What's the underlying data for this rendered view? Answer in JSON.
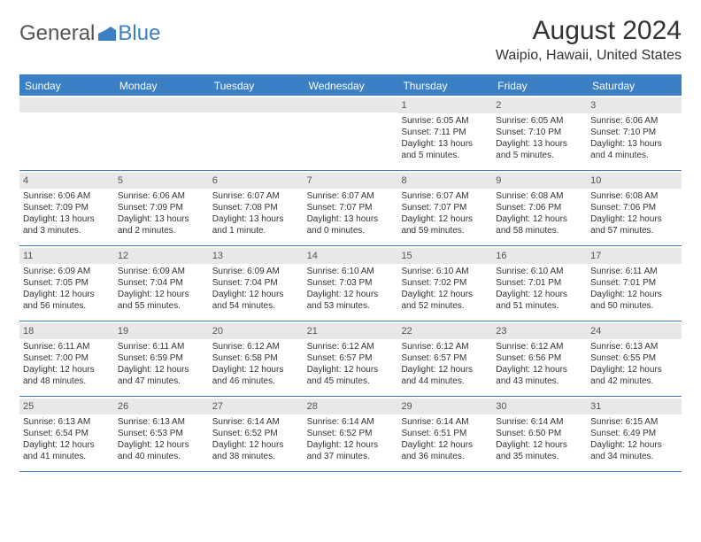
{
  "logo": {
    "part1": "General",
    "part2": "Blue"
  },
  "title": "August 2024",
  "location": "Waipio, Hawaii, United States",
  "colors": {
    "header_bg": "#3b7fc4",
    "header_text": "#ffffff",
    "daynum_bg": "#e8e8e8",
    "border": "#3b7fc4",
    "body_text": "#333333",
    "logo_gray": "#555555",
    "logo_blue": "#3b7fc4"
  },
  "weekdays": [
    "Sunday",
    "Monday",
    "Tuesday",
    "Wednesday",
    "Thursday",
    "Friday",
    "Saturday"
  ],
  "weeks": [
    [
      {
        "n": "",
        "sr": "",
        "ss": "",
        "dl": ""
      },
      {
        "n": "",
        "sr": "",
        "ss": "",
        "dl": ""
      },
      {
        "n": "",
        "sr": "",
        "ss": "",
        "dl": ""
      },
      {
        "n": "",
        "sr": "",
        "ss": "",
        "dl": ""
      },
      {
        "n": "1",
        "sr": "Sunrise: 6:05 AM",
        "ss": "Sunset: 7:11 PM",
        "dl": "Daylight: 13 hours and 5 minutes."
      },
      {
        "n": "2",
        "sr": "Sunrise: 6:05 AM",
        "ss": "Sunset: 7:10 PM",
        "dl": "Daylight: 13 hours and 5 minutes."
      },
      {
        "n": "3",
        "sr": "Sunrise: 6:06 AM",
        "ss": "Sunset: 7:10 PM",
        "dl": "Daylight: 13 hours and 4 minutes."
      }
    ],
    [
      {
        "n": "4",
        "sr": "Sunrise: 6:06 AM",
        "ss": "Sunset: 7:09 PM",
        "dl": "Daylight: 13 hours and 3 minutes."
      },
      {
        "n": "5",
        "sr": "Sunrise: 6:06 AM",
        "ss": "Sunset: 7:09 PM",
        "dl": "Daylight: 13 hours and 2 minutes."
      },
      {
        "n": "6",
        "sr": "Sunrise: 6:07 AM",
        "ss": "Sunset: 7:08 PM",
        "dl": "Daylight: 13 hours and 1 minute."
      },
      {
        "n": "7",
        "sr": "Sunrise: 6:07 AM",
        "ss": "Sunset: 7:07 PM",
        "dl": "Daylight: 13 hours and 0 minutes."
      },
      {
        "n": "8",
        "sr": "Sunrise: 6:07 AM",
        "ss": "Sunset: 7:07 PM",
        "dl": "Daylight: 12 hours and 59 minutes."
      },
      {
        "n": "9",
        "sr": "Sunrise: 6:08 AM",
        "ss": "Sunset: 7:06 PM",
        "dl": "Daylight: 12 hours and 58 minutes."
      },
      {
        "n": "10",
        "sr": "Sunrise: 6:08 AM",
        "ss": "Sunset: 7:06 PM",
        "dl": "Daylight: 12 hours and 57 minutes."
      }
    ],
    [
      {
        "n": "11",
        "sr": "Sunrise: 6:09 AM",
        "ss": "Sunset: 7:05 PM",
        "dl": "Daylight: 12 hours and 56 minutes."
      },
      {
        "n": "12",
        "sr": "Sunrise: 6:09 AM",
        "ss": "Sunset: 7:04 PM",
        "dl": "Daylight: 12 hours and 55 minutes."
      },
      {
        "n": "13",
        "sr": "Sunrise: 6:09 AM",
        "ss": "Sunset: 7:04 PM",
        "dl": "Daylight: 12 hours and 54 minutes."
      },
      {
        "n": "14",
        "sr": "Sunrise: 6:10 AM",
        "ss": "Sunset: 7:03 PM",
        "dl": "Daylight: 12 hours and 53 minutes."
      },
      {
        "n": "15",
        "sr": "Sunrise: 6:10 AM",
        "ss": "Sunset: 7:02 PM",
        "dl": "Daylight: 12 hours and 52 minutes."
      },
      {
        "n": "16",
        "sr": "Sunrise: 6:10 AM",
        "ss": "Sunset: 7:01 PM",
        "dl": "Daylight: 12 hours and 51 minutes."
      },
      {
        "n": "17",
        "sr": "Sunrise: 6:11 AM",
        "ss": "Sunset: 7:01 PM",
        "dl": "Daylight: 12 hours and 50 minutes."
      }
    ],
    [
      {
        "n": "18",
        "sr": "Sunrise: 6:11 AM",
        "ss": "Sunset: 7:00 PM",
        "dl": "Daylight: 12 hours and 48 minutes."
      },
      {
        "n": "19",
        "sr": "Sunrise: 6:11 AM",
        "ss": "Sunset: 6:59 PM",
        "dl": "Daylight: 12 hours and 47 minutes."
      },
      {
        "n": "20",
        "sr": "Sunrise: 6:12 AM",
        "ss": "Sunset: 6:58 PM",
        "dl": "Daylight: 12 hours and 46 minutes."
      },
      {
        "n": "21",
        "sr": "Sunrise: 6:12 AM",
        "ss": "Sunset: 6:57 PM",
        "dl": "Daylight: 12 hours and 45 minutes."
      },
      {
        "n": "22",
        "sr": "Sunrise: 6:12 AM",
        "ss": "Sunset: 6:57 PM",
        "dl": "Daylight: 12 hours and 44 minutes."
      },
      {
        "n": "23",
        "sr": "Sunrise: 6:12 AM",
        "ss": "Sunset: 6:56 PM",
        "dl": "Daylight: 12 hours and 43 minutes."
      },
      {
        "n": "24",
        "sr": "Sunrise: 6:13 AM",
        "ss": "Sunset: 6:55 PM",
        "dl": "Daylight: 12 hours and 42 minutes."
      }
    ],
    [
      {
        "n": "25",
        "sr": "Sunrise: 6:13 AM",
        "ss": "Sunset: 6:54 PM",
        "dl": "Daylight: 12 hours and 41 minutes."
      },
      {
        "n": "26",
        "sr": "Sunrise: 6:13 AM",
        "ss": "Sunset: 6:53 PM",
        "dl": "Daylight: 12 hours and 40 minutes."
      },
      {
        "n": "27",
        "sr": "Sunrise: 6:14 AM",
        "ss": "Sunset: 6:52 PM",
        "dl": "Daylight: 12 hours and 38 minutes."
      },
      {
        "n": "28",
        "sr": "Sunrise: 6:14 AM",
        "ss": "Sunset: 6:52 PM",
        "dl": "Daylight: 12 hours and 37 minutes."
      },
      {
        "n": "29",
        "sr": "Sunrise: 6:14 AM",
        "ss": "Sunset: 6:51 PM",
        "dl": "Daylight: 12 hours and 36 minutes."
      },
      {
        "n": "30",
        "sr": "Sunrise: 6:14 AM",
        "ss": "Sunset: 6:50 PM",
        "dl": "Daylight: 12 hours and 35 minutes."
      },
      {
        "n": "31",
        "sr": "Sunrise: 6:15 AM",
        "ss": "Sunset: 6:49 PM",
        "dl": "Daylight: 12 hours and 34 minutes."
      }
    ]
  ]
}
